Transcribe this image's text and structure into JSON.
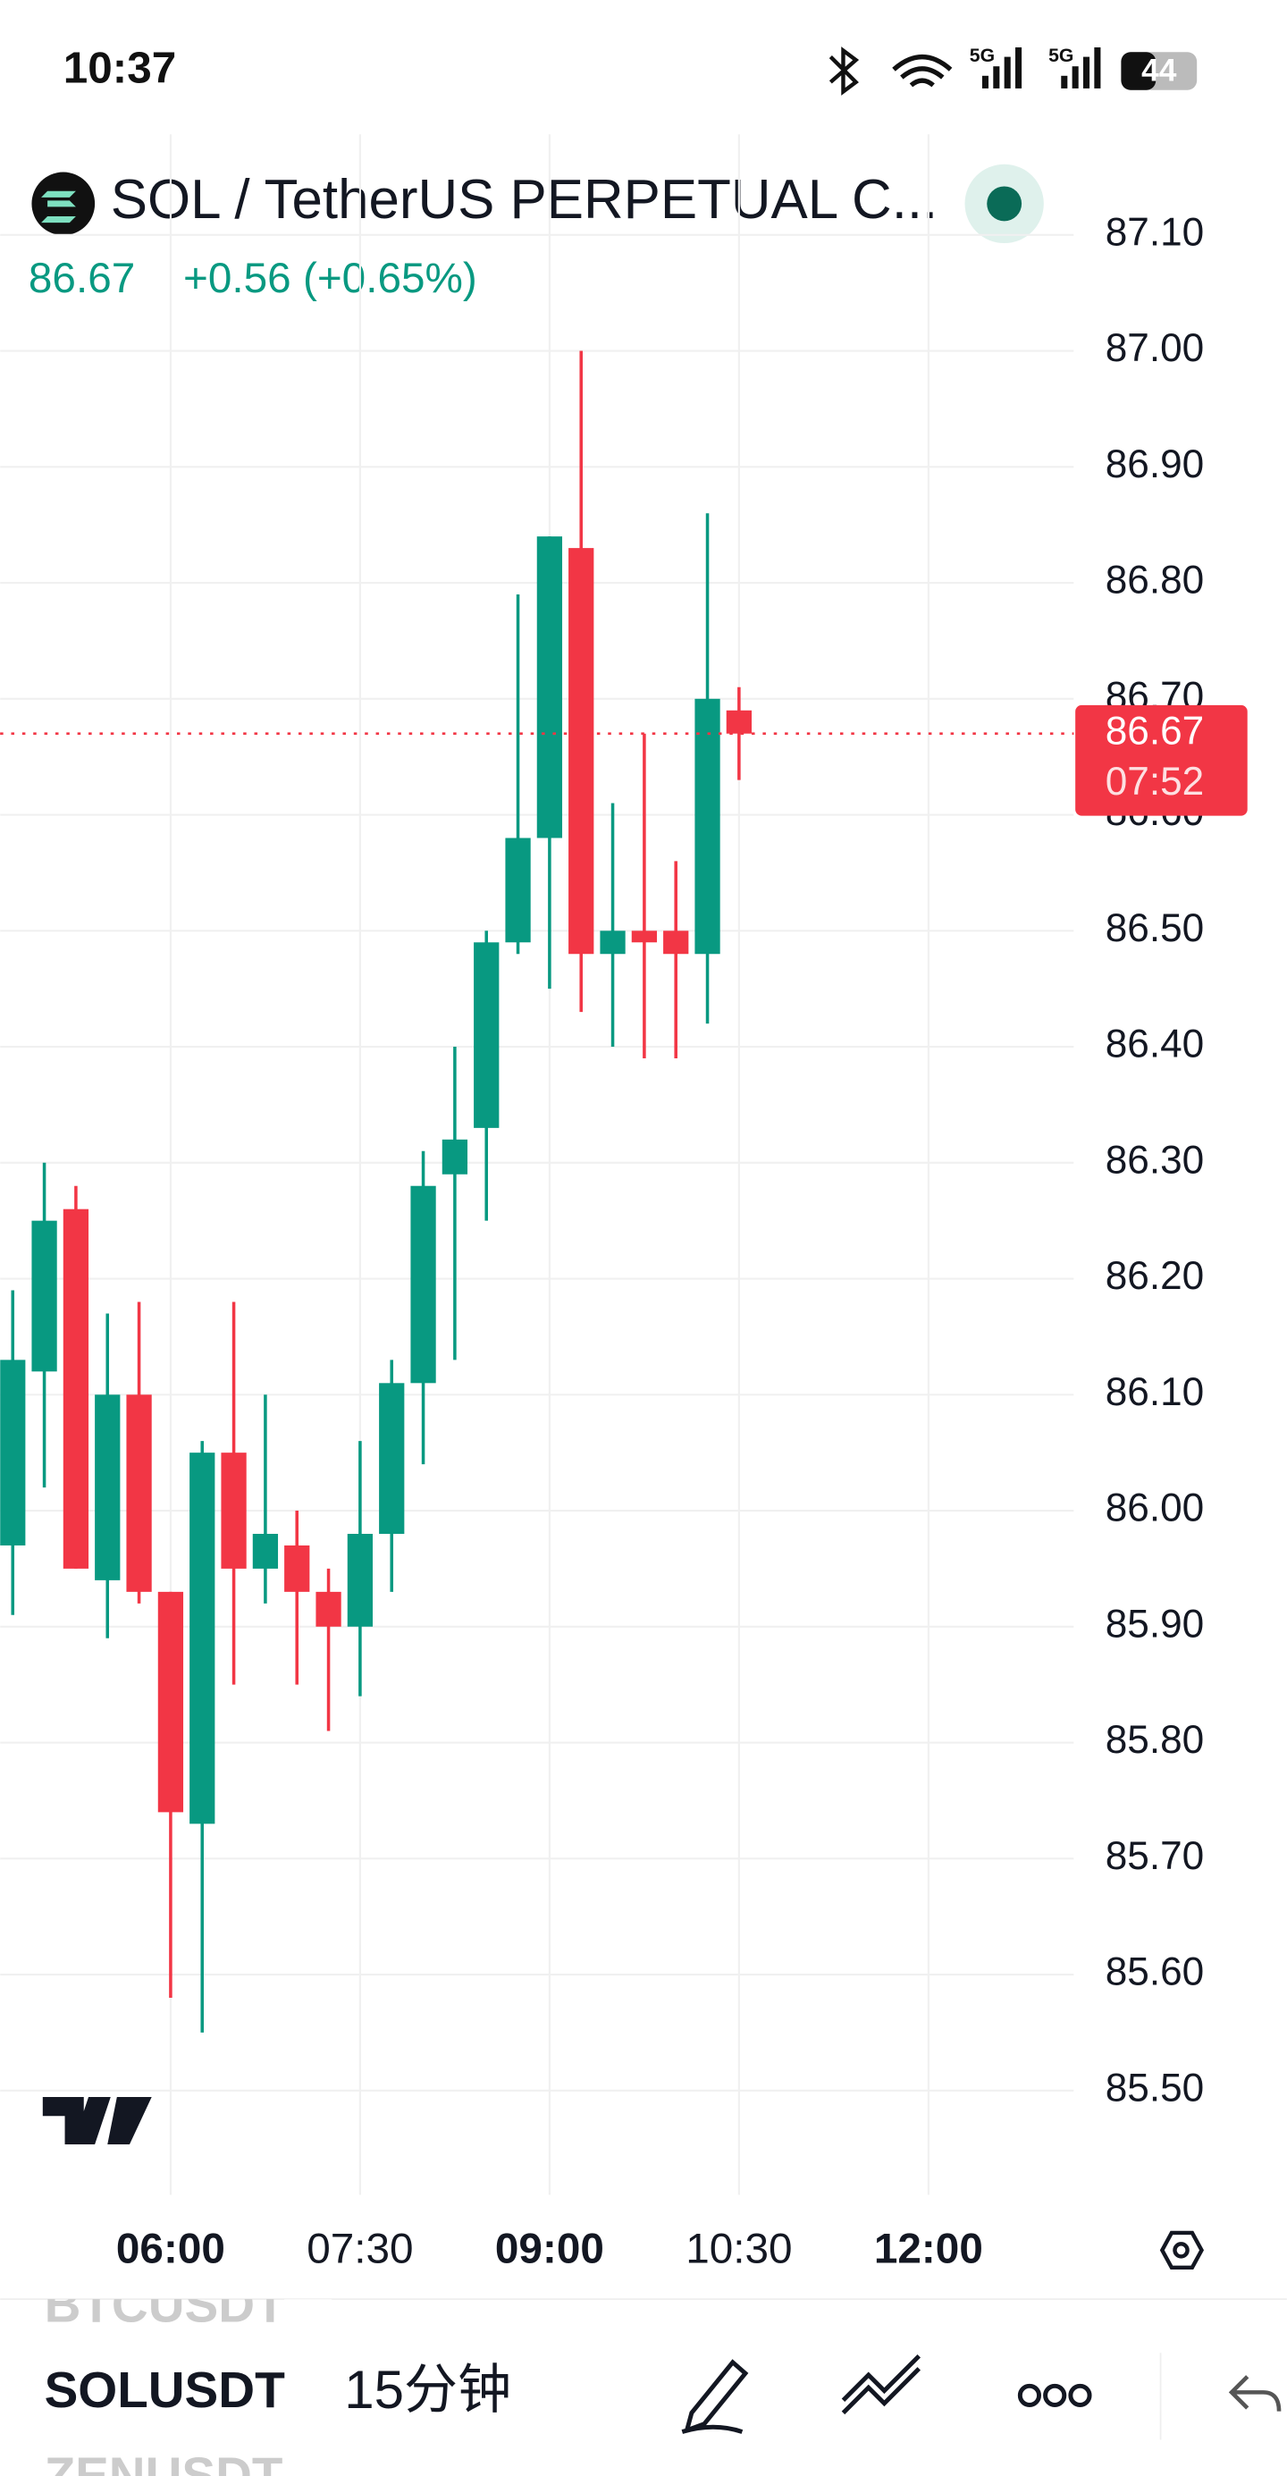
{
  "status_bar": {
    "time": "10:37",
    "battery": "44"
  },
  "header": {
    "title": "SOL / TetherUS PERPETUAL C...",
    "price": "86.67",
    "change": "+0.56 (+0.65%)"
  },
  "chart_data": {
    "type": "candlestick",
    "categories": [
      null,
      null,
      null,
      null,
      null,
      "06:00",
      null,
      null,
      null,
      null,
      null,
      "07:30",
      null,
      null,
      null,
      null,
      null,
      "09:00",
      null,
      null,
      null,
      null,
      null,
      "10:30",
      null,
      null,
      null,
      null,
      null,
      "12:00"
    ],
    "open": [
      85.97,
      86.12,
      86.26,
      85.94,
      86.1,
      85.93,
      85.73,
      86.05,
      85.95,
      85.97,
      85.93,
      85.9,
      85.98,
      86.11,
      86.29,
      86.33,
      86.49,
      86.58,
      86.83,
      86.48,
      86.5,
      86.5,
      86.48,
      86.69,
      null,
      null,
      null,
      null,
      null,
      null
    ],
    "high": [
      86.19,
      86.3,
      86.28,
      86.17,
      86.18,
      85.93,
      86.06,
      86.18,
      86.1,
      86.0,
      85.95,
      86.06,
      86.13,
      86.31,
      86.4,
      86.5,
      86.79,
      86.84,
      87.0,
      86.61,
      86.67,
      86.56,
      86.86,
      86.71,
      null,
      null,
      null,
      null,
      null,
      null
    ],
    "low": [
      85.91,
      86.02,
      85.95,
      85.89,
      85.92,
      85.58,
      85.55,
      85.85,
      85.92,
      85.85,
      85.81,
      85.84,
      85.93,
      86.04,
      86.13,
      86.25,
      86.48,
      86.45,
      86.43,
      86.4,
      86.39,
      86.39,
      86.42,
      86.63,
      null,
      null,
      null,
      null,
      null,
      null
    ],
    "close": [
      86.13,
      86.25,
      85.95,
      86.1,
      85.93,
      85.74,
      86.05,
      85.95,
      85.98,
      85.93,
      85.9,
      85.98,
      86.11,
      86.28,
      86.32,
      86.49,
      86.58,
      86.84,
      86.48,
      86.5,
      86.49,
      86.48,
      86.7,
      86.67,
      null,
      null,
      null,
      null,
      null,
      null
    ],
    "up_color": "#089981",
    "down_color": "#f23645",
    "ylim": [
      85.41,
      87.18
    ],
    "yticks": [
      {
        "value": 87.1,
        "label": "87.10"
      },
      {
        "value": 87,
        "label": "87.00"
      },
      {
        "value": 86.9,
        "label": "86.90"
      },
      {
        "value": 86.8,
        "label": "86.80"
      },
      {
        "value": 86.7,
        "label": "86.70"
      },
      {
        "value": 86.6,
        "label": "86.60"
      },
      {
        "value": 86.5,
        "label": "86.50"
      },
      {
        "value": 86.4,
        "label": "86.40"
      },
      {
        "value": 86.3,
        "label": "86.30"
      },
      {
        "value": 86.2,
        "label": "86.20"
      },
      {
        "value": 86.1,
        "label": "86.10"
      },
      {
        "value": 86,
        "label": "86.00"
      },
      {
        "value": 85.9,
        "label": "85.90"
      },
      {
        "value": 85.8,
        "label": "85.80"
      },
      {
        "value": 85.7,
        "label": "85.70"
      },
      {
        "value": 85.6,
        "label": "85.60"
      },
      {
        "value": 85.5,
        "label": "85.50"
      }
    ],
    "grid": true,
    "last_price": {
      "value": 86.67,
      "label": "86.67",
      "time": "07:52"
    }
  },
  "toolbar": {
    "symbols": [
      "BTCUSDT",
      "SOLUSDT",
      "ZENUSDT"
    ],
    "interval": "15分钟"
  }
}
